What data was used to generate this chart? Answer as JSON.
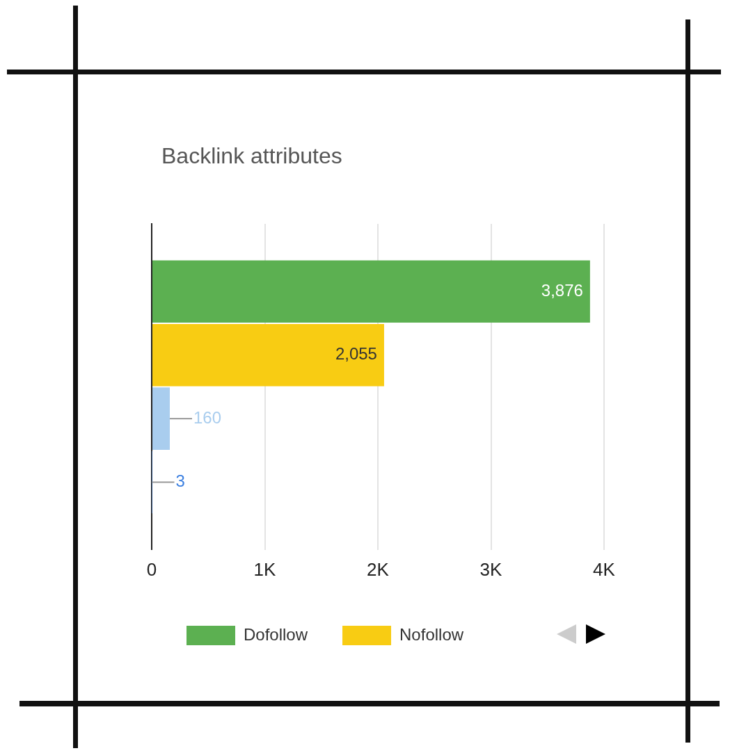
{
  "chart_data": {
    "type": "bar",
    "orientation": "horizontal",
    "title": "Backlink attributes",
    "categories": [
      null
    ],
    "series": [
      {
        "name": "Dofollow",
        "color": "#5cb051",
        "values": [
          3876
        ],
        "value_labels": [
          "3,876"
        ]
      },
      {
        "name": "Nofollow",
        "color": "#f8cc13",
        "values": [
          2055
        ],
        "value_labels": [
          "2,055"
        ]
      },
      {
        "color": "#a9cdee",
        "values": [
          160
        ],
        "value_labels": [
          "160"
        ]
      },
      {
        "color": "#3b7fe0",
        "values": [
          3
        ],
        "value_labels": [
          "3"
        ]
      }
    ],
    "xlim": [
      0,
      4000
    ],
    "xticks": [
      0,
      {
        "value": 1000,
        "label": "1K"
      },
      {
        "value": 2000,
        "label": "2K"
      },
      {
        "value": 3000,
        "label": "3K"
      },
      {
        "value": 4000,
        "label": "4K"
      }
    ],
    "grid": "x",
    "legend": "bottom",
    "tick_labels": "x"
  }
}
